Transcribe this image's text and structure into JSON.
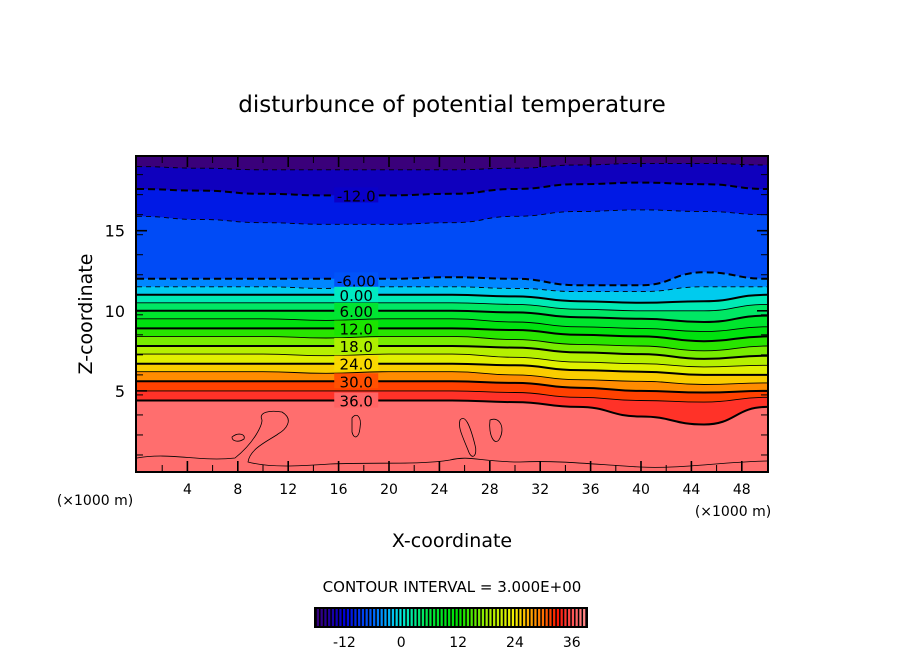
{
  "chart_data": {
    "type": "heatmap",
    "subtype": "filled-contour",
    "title": "disturbunce of potential temperature",
    "xlabel": "X-coordinate",
    "ylabel": "Z-coordinate",
    "x_unit_label": "(×1000 m)",
    "y_unit_label": "(×1000 m)",
    "xlim": [
      0,
      50
    ],
    "ylim": [
      0,
      19.6
    ],
    "x_ticks": [
      4,
      8,
      12,
      16,
      20,
      24,
      28,
      32,
      36,
      40,
      44,
      48
    ],
    "x_tick_labels": [
      "4",
      "8",
      "12",
      "16",
      "20",
      "24",
      "28",
      "32",
      "36",
      "40",
      "44",
      "48"
    ],
    "y_ticks": [
      5,
      10,
      15
    ],
    "y_tick_labels": [
      "5",
      "10",
      "15"
    ],
    "contour_interval_label": "CONTOUR INTERVAL = 3.000E+00",
    "contour_interval": 3,
    "value_range": [
      -18,
      39
    ],
    "contour_labels": [
      {
        "text": "-12.0",
        "value": -12,
        "x": 17.4,
        "z": 17.2
      },
      {
        "text": "-6.00",
        "value": -6,
        "x": 17.4,
        "z": 11.9
      },
      {
        "text": "0.00",
        "value": 0,
        "x": 17.4,
        "z": 11.0
      },
      {
        "text": "6.00",
        "value": 6,
        "x": 17.4,
        "z": 10.0
      },
      {
        "text": "12.0",
        "value": 12,
        "x": 17.4,
        "z": 8.9
      },
      {
        "text": "18.0",
        "value": 18,
        "x": 17.4,
        "z": 7.8
      },
      {
        "text": "24.0",
        "value": 24,
        "x": 17.4,
        "z": 6.7
      },
      {
        "text": "30.0",
        "value": 30,
        "x": 17.4,
        "z": 5.6
      },
      {
        "text": "36.0",
        "value": 36,
        "x": 17.4,
        "z": 4.4
      }
    ],
    "contour_profiles": [
      {
        "value": -15,
        "dashed": true,
        "z": [
          19.0,
          18.9,
          18.8,
          18.8,
          18.8,
          18.8,
          18.9,
          19.1,
          19.2,
          19.2,
          19.1
        ]
      },
      {
        "value": -12,
        "dashed": true,
        "z": [
          17.6,
          17.5,
          17.3,
          17.2,
          17.2,
          17.3,
          17.6,
          17.9,
          18.0,
          17.9,
          17.6
        ]
      },
      {
        "value": -9,
        "dashed": true,
        "z": [
          15.9,
          15.7,
          15.5,
          15.4,
          15.4,
          15.5,
          15.9,
          16.2,
          16.3,
          16.2,
          16.0
        ]
      },
      {
        "value": -6,
        "dashed": true,
        "z": [
          12.0,
          12.0,
          12.0,
          12.0,
          12.0,
          12.1,
          12.0,
          11.6,
          11.6,
          12.4,
          12.0
        ]
      },
      {
        "value": -3,
        "dashed": true,
        "z": [
          11.5,
          11.5,
          11.5,
          11.4,
          11.5,
          11.5,
          11.4,
          11.2,
          11.2,
          11.5,
          11.5
        ]
      },
      {
        "value": 0,
        "dashed": false,
        "z": [
          11.0,
          11.0,
          11.0,
          11.0,
          11.0,
          11.0,
          10.9,
          10.6,
          10.5,
          10.6,
          11.0
        ]
      },
      {
        "value": 3,
        "dashed": false,
        "z": [
          10.5,
          10.5,
          10.5,
          10.5,
          10.5,
          10.5,
          10.4,
          10.1,
          10.0,
          10.0,
          10.4
        ]
      },
      {
        "value": 6,
        "dashed": false,
        "z": [
          10.0,
          10.0,
          10.0,
          10.0,
          10.0,
          10.0,
          9.9,
          9.6,
          9.5,
          9.3,
          9.7
        ]
      },
      {
        "value": 9,
        "dashed": false,
        "z": [
          9.5,
          9.5,
          9.5,
          9.4,
          9.5,
          9.5,
          9.3,
          9.0,
          8.9,
          8.7,
          9.0
        ]
      },
      {
        "value": 12,
        "dashed": false,
        "z": [
          8.9,
          8.9,
          8.9,
          8.9,
          8.9,
          8.9,
          8.8,
          8.5,
          8.4,
          8.1,
          8.4
        ]
      },
      {
        "value": 15,
        "dashed": false,
        "z": [
          8.4,
          8.4,
          8.4,
          8.3,
          8.4,
          8.4,
          8.2,
          7.9,
          7.8,
          7.5,
          7.8
        ]
      },
      {
        "value": 18,
        "dashed": false,
        "z": [
          7.8,
          7.8,
          7.8,
          7.8,
          7.8,
          7.8,
          7.7,
          7.4,
          7.3,
          7.0,
          7.2
        ]
      },
      {
        "value": 21,
        "dashed": false,
        "z": [
          7.3,
          7.3,
          7.3,
          7.2,
          7.3,
          7.3,
          7.1,
          6.8,
          6.7,
          6.5,
          6.6
        ]
      },
      {
        "value": 24,
        "dashed": false,
        "z": [
          6.7,
          6.7,
          6.7,
          6.7,
          6.7,
          6.7,
          6.6,
          6.3,
          6.2,
          6.0,
          6.0
        ]
      },
      {
        "value": 27,
        "dashed": false,
        "z": [
          6.2,
          6.2,
          6.2,
          6.1,
          6.2,
          6.2,
          6.0,
          5.7,
          5.6,
          5.4,
          5.5
        ]
      },
      {
        "value": 30,
        "dashed": false,
        "z": [
          5.6,
          5.6,
          5.6,
          5.6,
          5.6,
          5.6,
          5.5,
          5.2,
          5.0,
          4.9,
          5.0
        ]
      },
      {
        "value": 33,
        "dashed": false,
        "z": [
          5.0,
          5.0,
          5.0,
          5.0,
          5.0,
          5.0,
          4.9,
          4.6,
          4.4,
          4.3,
          4.6
        ]
      },
      {
        "value": 36,
        "dashed": false,
        "z": [
          4.4,
          4.4,
          4.4,
          4.4,
          4.4,
          4.4,
          4.3,
          4.0,
          3.4,
          2.9,
          4.0
        ]
      }
    ],
    "profile_x": [
      0,
      5,
      10,
      15,
      20,
      25,
      30,
      35,
      40,
      45,
      50
    ],
    "colorbar": {
      "min": -18,
      "max": 39,
      "tick_values": [
        -12,
        0,
        12,
        24,
        36
      ],
      "tick_labels": [
        "-12",
        "0",
        "12",
        "24",
        "36"
      ]
    },
    "colors": {
      "low": "#3a007a",
      "blue": "#0000e0",
      "sky": "#0090ff",
      "cyan": "#00e8e0",
      "green": "#00e000",
      "yellow": "#f0f000",
      "orange": "#ff9000",
      "red": "#ff0000",
      "high": "#ff8888",
      "surface": "#ff8a8a"
    }
  }
}
